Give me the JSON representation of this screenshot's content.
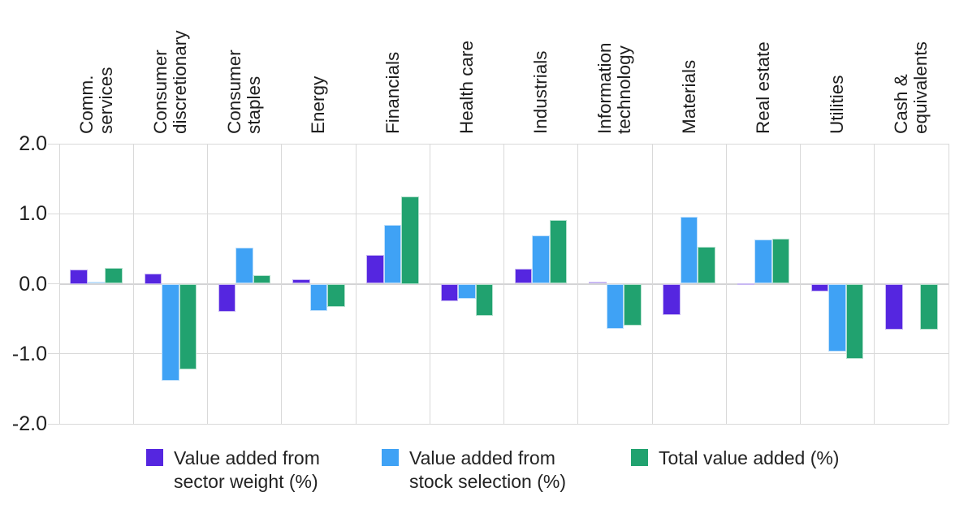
{
  "legend": {
    "items": [
      {
        "lines": [
          "Value added from",
          "sector weight (%)"
        ]
      },
      {
        "lines": [
          "Value added from",
          "stock selection (%)"
        ]
      },
      {
        "lines": [
          "Total value added (%)"
        ]
      }
    ]
  },
  "chart_data": {
    "type": "bar",
    "title": "",
    "xlabel": "",
    "ylabel": "",
    "categories": [
      "Comm. services",
      "Consumer discretionary",
      "Consumer staples",
      "Energy",
      "Financials",
      "Health care",
      "Industrials",
      "Information technology",
      "Materials",
      "Real estate",
      "Utilities",
      "Cash & equivalents"
    ],
    "categories_lines": [
      [
        "Comm.",
        "services"
      ],
      [
        "Consumer",
        "discretionary"
      ],
      [
        "Consumer",
        "staples"
      ],
      [
        "Energy"
      ],
      [
        "Financials"
      ],
      [
        "Health care"
      ],
      [
        "Industrials"
      ],
      [
        "Information",
        "technology"
      ],
      [
        "Materials"
      ],
      [
        "Real estate"
      ],
      [
        "Utilities"
      ],
      [
        "Cash &",
        "equivalents"
      ]
    ],
    "series": [
      {
        "name": "Value added from sector weight (%)",
        "color": "#5526e0",
        "tint": "#c8b8f3",
        "values": [
          0.2,
          0.15,
          -0.4,
          0.06,
          0.41,
          -0.25,
          0.21,
          0.03,
          -0.45,
          0.01,
          -0.11,
          -0.65
        ]
      },
      {
        "name": "Value added from stock selection (%)",
        "color": "#3fa2f5",
        "tint": "#c0e0fb",
        "values": [
          0.03,
          -1.39,
          0.52,
          -0.39,
          0.84,
          -0.22,
          0.69,
          -0.64,
          0.96,
          0.63,
          -0.97,
          0.0
        ]
      },
      {
        "name": "Total value added (%)",
        "color": "#21a26f",
        "tint": "#b4e0cd",
        "values": [
          0.23,
          -1.22,
          0.12,
          -0.33,
          1.25,
          -0.46,
          0.91,
          -0.6,
          0.53,
          0.64,
          -1.07,
          -0.65
        ]
      }
    ],
    "yticks": [
      2.0,
      1.0,
      0.0,
      -1.0,
      -2.0
    ],
    "ytick_labels": [
      "2.0",
      "1.0",
      "0.0",
      "-1.0",
      "-2.0"
    ],
    "ylim": [
      -2.0,
      2.0
    ],
    "grid": "horizontal gridlines at ticks, vertical separators between categories",
    "legend_position": "bottom"
  }
}
